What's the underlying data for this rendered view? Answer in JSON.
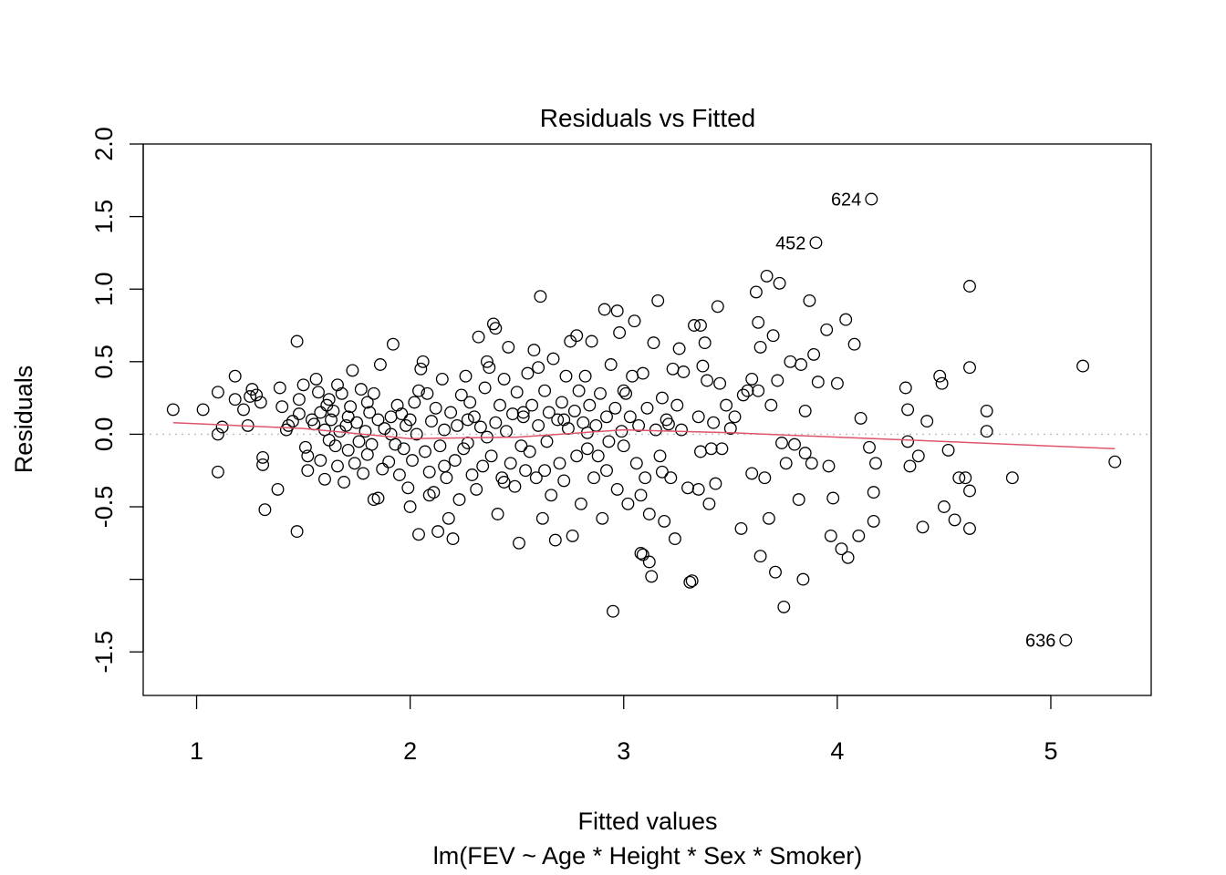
{
  "chart_data": {
    "type": "scatter",
    "title": "Residuals vs Fitted",
    "xlabel": "Fitted values",
    "subtitle": "lm(FEV ~ Age * Height * Sex * Smoker)",
    "ylabel": "Residuals",
    "xlim": [
      0.75,
      5.47
    ],
    "ylim": [
      -1.8,
      2.0
    ],
    "x_ticks": [
      1,
      2,
      3,
      4,
      5
    ],
    "x_tick_labels": [
      "1",
      "2",
      "3",
      "4",
      "5"
    ],
    "y_ticks": [
      -1.5,
      -1.0,
      -0.5,
      0.0,
      0.5,
      1.0,
      1.5,
      2.0
    ],
    "y_tick_labels": [
      "-1.5",
      "",
      "-0.5",
      "0.0",
      "0.5",
      "1.0",
      "1.5",
      "2.0"
    ],
    "grid": false,
    "reference_line": {
      "y": 0,
      "style": "dotted",
      "color": "#bebebe"
    },
    "colors": {
      "points": "#000000",
      "smoother": "#df536b"
    },
    "smoother": [
      [
        0.89,
        0.08
      ],
      [
        1.5,
        0.04
      ],
      [
        2.0,
        -0.03
      ],
      [
        2.5,
        -0.02
      ],
      [
        3.0,
        0.03
      ],
      [
        3.5,
        0.01
      ],
      [
        4.0,
        -0.02
      ],
      [
        4.5,
        -0.05
      ],
      [
        5.3,
        -0.1
      ]
    ],
    "labeled_points": [
      {
        "label": "624",
        "x": 4.16,
        "y": 1.62
      },
      {
        "label": "452",
        "x": 3.9,
        "y": 1.32
      },
      {
        "label": "636",
        "x": 5.07,
        "y": -1.42
      }
    ],
    "points": [
      [
        0.89,
        0.17
      ],
      [
        1.03,
        0.17
      ],
      [
        1.1,
        0.29
      ],
      [
        1.1,
        0.0
      ],
      [
        1.12,
        0.05
      ],
      [
        1.1,
        -0.26
      ],
      [
        1.18,
        0.4
      ],
      [
        1.18,
        0.24
      ],
      [
        1.22,
        0.17
      ],
      [
        1.24,
        0.06
      ],
      [
        1.26,
        0.31
      ],
      [
        1.28,
        0.27
      ],
      [
        1.3,
        0.22
      ],
      [
        1.31,
        -0.16
      ],
      [
        1.31,
        -0.21
      ],
      [
        1.32,
        -0.52
      ],
      [
        1.38,
        -0.38
      ],
      [
        1.39,
        0.32
      ],
      [
        1.4,
        0.19
      ],
      [
        1.43,
        0.06
      ],
      [
        1.45,
        0.09
      ],
      [
        1.47,
        0.64
      ],
      [
        1.47,
        -0.67
      ],
      [
        1.48,
        0.14
      ],
      [
        1.48,
        0.24
      ],
      [
        1.5,
        0.34
      ],
      [
        1.51,
        -0.09
      ],
      [
        1.52,
        -0.15
      ],
      [
        1.52,
        -0.25
      ],
      [
        1.54,
        0.1
      ],
      [
        1.55,
        0.07
      ],
      [
        1.56,
        0.38
      ],
      [
        1.57,
        0.29
      ],
      [
        1.58,
        -0.18
      ],
      [
        1.6,
        -0.31
      ],
      [
        1.6,
        0.03
      ],
      [
        1.61,
        0.2
      ],
      [
        1.62,
        0.24
      ],
      [
        1.62,
        -0.04
      ],
      [
        1.63,
        0.1
      ],
      [
        1.64,
        0.16
      ],
      [
        1.65,
        -0.08
      ],
      [
        1.66,
        0.34
      ],
      [
        1.66,
        -0.22
      ],
      [
        1.67,
        0.02
      ],
      [
        1.68,
        0.28
      ],
      [
        1.69,
        -0.33
      ],
      [
        1.7,
        0.06
      ],
      [
        1.71,
        -0.11
      ],
      [
        1.72,
        0.19
      ],
      [
        1.73,
        0.44
      ],
      [
        1.74,
        -0.2
      ],
      [
        1.75,
        0.08
      ],
      [
        1.76,
        -0.05
      ],
      [
        1.77,
        0.31
      ],
      [
        1.78,
        -0.27
      ],
      [
        1.79,
        0.02
      ],
      [
        1.8,
        -0.14
      ],
      [
        1.81,
        0.15
      ],
      [
        1.82,
        -0.07
      ],
      [
        1.83,
        0.28
      ],
      [
        1.83,
        -0.45
      ],
      [
        1.85,
        -0.44
      ],
      [
        1.85,
        0.1
      ],
      [
        1.86,
        0.48
      ],
      [
        1.87,
        -0.24
      ],
      [
        1.88,
        0.04
      ],
      [
        1.9,
        -0.19
      ],
      [
        1.91,
        0.12
      ],
      [
        1.92,
        0.62
      ],
      [
        1.93,
        -0.07
      ],
      [
        1.94,
        0.2
      ],
      [
        1.95,
        -0.28
      ],
      [
        1.96,
        0.14
      ],
      [
        1.97,
        -0.1
      ],
      [
        1.98,
        0.06
      ],
      [
        1.99,
        -0.37
      ],
      [
        2.0,
        0.1
      ],
      [
        2.0,
        -0.5
      ],
      [
        2.01,
        -0.18
      ],
      [
        2.02,
        0.22
      ],
      [
        2.03,
        0.0
      ],
      [
        2.04,
        -0.69
      ],
      [
        2.05,
        0.45
      ],
      [
        2.06,
        0.5
      ],
      [
        2.07,
        -0.12
      ],
      [
        2.08,
        0.28
      ],
      [
        2.09,
        -0.26
      ],
      [
        2.1,
        0.09
      ],
      [
        2.11,
        -0.4
      ],
      [
        2.12,
        0.18
      ],
      [
        2.13,
        -0.67
      ],
      [
        2.14,
        -0.08
      ],
      [
        2.15,
        0.38
      ],
      [
        2.16,
        0.03
      ],
      [
        2.17,
        -0.3
      ],
      [
        2.18,
        -0.58
      ],
      [
        2.19,
        0.15
      ],
      [
        2.2,
        -0.72
      ],
      [
        2.21,
        -0.18
      ],
      [
        2.22,
        0.06
      ],
      [
        2.23,
        -0.45
      ],
      [
        2.24,
        0.27
      ],
      [
        2.25,
        -0.1
      ],
      [
        2.26,
        0.4
      ],
      [
        2.27,
        -0.06
      ],
      [
        2.28,
        0.22
      ],
      [
        2.29,
        -0.28
      ],
      [
        2.3,
        0.12
      ],
      [
        2.31,
        -0.38
      ],
      [
        2.32,
        0.67
      ],
      [
        2.33,
        0.05
      ],
      [
        2.34,
        -0.22
      ],
      [
        2.35,
        0.32
      ],
      [
        2.36,
        -0.02
      ],
      [
        2.37,
        0.46
      ],
      [
        2.38,
        -0.15
      ],
      [
        2.39,
        0.76
      ],
      [
        2.4,
        0.08
      ],
      [
        2.41,
        -0.55
      ],
      [
        2.42,
        0.2
      ],
      [
        2.43,
        -0.3
      ],
      [
        2.44,
        0.38
      ],
      [
        2.45,
        0.02
      ],
      [
        2.46,
        0.6
      ],
      [
        2.47,
        -0.2
      ],
      [
        2.48,
        0.14
      ],
      [
        2.49,
        -0.36
      ],
      [
        2.5,
        0.29
      ],
      [
        2.51,
        -0.75
      ],
      [
        2.52,
        -0.08
      ],
      [
        2.53,
        0.12
      ],
      [
        2.54,
        -0.25
      ],
      [
        2.55,
        0.42
      ],
      [
        2.56,
        -0.12
      ],
      [
        2.57,
        0.2
      ],
      [
        2.58,
        0.58
      ],
      [
        2.59,
        -0.3
      ],
      [
        2.6,
        0.06
      ],
      [
        2.61,
        0.95
      ],
      [
        2.62,
        -0.58
      ],
      [
        2.63,
        0.3
      ],
      [
        2.64,
        -0.05
      ],
      [
        2.65,
        0.15
      ],
      [
        2.66,
        -0.42
      ],
      [
        2.67,
        0.52
      ],
      [
        2.68,
        -0.73
      ],
      [
        2.69,
        0.1
      ],
      [
        2.7,
        -0.2
      ],
      [
        2.71,
        0.22
      ],
      [
        2.72,
        -0.32
      ],
      [
        2.73,
        0.4
      ],
      [
        2.74,
        0.04
      ],
      [
        2.75,
        0.64
      ],
      [
        2.76,
        -0.7
      ],
      [
        2.77,
        0.16
      ],
      [
        2.78,
        -0.15
      ],
      [
        2.79,
        0.3
      ],
      [
        2.8,
        -0.48
      ],
      [
        2.81,
        0.08
      ],
      [
        2.82,
        0.4
      ],
      [
        2.83,
        -0.1
      ],
      [
        2.84,
        0.2
      ],
      [
        2.85,
        0.64
      ],
      [
        2.86,
        -0.3
      ],
      [
        2.87,
        0.06
      ],
      [
        2.88,
        -0.15
      ],
      [
        2.89,
        0.28
      ],
      [
        2.9,
        -0.58
      ],
      [
        2.91,
        0.86
      ],
      [
        2.92,
        0.12
      ],
      [
        2.93,
        -0.05
      ],
      [
        2.94,
        0.48
      ],
      [
        2.95,
        -1.22
      ],
      [
        2.96,
        0.18
      ],
      [
        2.97,
        -0.38
      ],
      [
        2.98,
        0.7
      ],
      [
        2.99,
        0.02
      ],
      [
        3.0,
        -0.08
      ],
      [
        3.01,
        0.28
      ],
      [
        3.02,
        -0.48
      ],
      [
        3.03,
        0.12
      ],
      [
        3.04,
        0.4
      ],
      [
        3.05,
        0.78
      ],
      [
        3.06,
        -0.2
      ],
      [
        3.07,
        0.06
      ],
      [
        3.08,
        -0.82
      ],
      [
        3.09,
        0.42
      ],
      [
        3.1,
        -0.3
      ],
      [
        3.11,
        0.18
      ],
      [
        3.12,
        -0.55
      ],
      [
        3.13,
        -0.98
      ],
      [
        3.14,
        0.63
      ],
      [
        3.15,
        0.03
      ],
      [
        3.16,
        0.92
      ],
      [
        3.17,
        -0.15
      ],
      [
        3.18,
        0.25
      ],
      [
        3.19,
        -0.6
      ],
      [
        3.2,
        0.1
      ],
      [
        3.22,
        -0.3
      ],
      [
        3.23,
        0.45
      ],
      [
        3.24,
        -0.72
      ],
      [
        3.25,
        0.2
      ],
      [
        3.26,
        0.59
      ],
      [
        3.27,
        0.03
      ],
      [
        3.28,
        0.43
      ],
      [
        3.3,
        -0.37
      ],
      [
        3.31,
        -1.02
      ],
      [
        3.32,
        -1.01
      ],
      [
        3.33,
        0.75
      ],
      [
        3.35,
        0.12
      ],
      [
        3.36,
        -0.12
      ],
      [
        3.37,
        0.47
      ],
      [
        3.38,
        0.63
      ],
      [
        3.39,
        0.37
      ],
      [
        3.4,
        -0.48
      ],
      [
        3.41,
        -0.1
      ],
      [
        3.42,
        0.08
      ],
      [
        3.43,
        -0.34
      ],
      [
        3.44,
        0.88
      ],
      [
        3.45,
        0.35
      ],
      [
        3.46,
        -0.1
      ],
      [
        3.48,
        0.2
      ],
      [
        3.5,
        0.04
      ],
      [
        3.52,
        0.12
      ],
      [
        3.55,
        -0.65
      ],
      [
        3.56,
        0.27
      ],
      [
        3.58,
        0.3
      ],
      [
        3.6,
        0.38
      ],
      [
        3.6,
        -0.27
      ],
      [
        3.62,
        0.98
      ],
      [
        3.63,
        0.3
      ],
      [
        3.63,
        0.77
      ],
      [
        3.64,
        -0.84
      ],
      [
        3.64,
        0.6
      ],
      [
        3.66,
        -0.3
      ],
      [
        3.67,
        1.09
      ],
      [
        3.68,
        -0.58
      ],
      [
        3.69,
        0.2
      ],
      [
        3.7,
        0.68
      ],
      [
        3.71,
        -0.95
      ],
      [
        3.72,
        0.37
      ],
      [
        3.73,
        1.04
      ],
      [
        3.74,
        -0.06
      ],
      [
        3.75,
        -1.19
      ],
      [
        3.76,
        -0.2
      ],
      [
        3.78,
        0.5
      ],
      [
        3.8,
        -0.07
      ],
      [
        3.82,
        -0.45
      ],
      [
        3.83,
        0.48
      ],
      [
        3.84,
        -1.0
      ],
      [
        3.85,
        -0.13
      ],
      [
        3.87,
        0.92
      ],
      [
        3.88,
        -0.2
      ],
      [
        3.89,
        0.55
      ],
      [
        3.91,
        0.36
      ],
      [
        3.95,
        0.72
      ],
      [
        3.96,
        -0.22
      ],
      [
        3.97,
        -0.7
      ],
      [
        3.98,
        -0.44
      ],
      [
        4.0,
        0.35
      ],
      [
        4.02,
        -0.79
      ],
      [
        4.04,
        0.79
      ],
      [
        4.05,
        -0.85
      ],
      [
        4.08,
        0.62
      ],
      [
        4.1,
        -0.7
      ],
      [
        4.11,
        0.11
      ],
      [
        4.15,
        -0.09
      ],
      [
        4.17,
        -0.4
      ],
      [
        4.17,
        -0.6
      ],
      [
        4.18,
        -0.2
      ],
      [
        4.32,
        0.32
      ],
      [
        4.33,
        0.17
      ],
      [
        4.33,
        -0.05
      ],
      [
        4.34,
        -0.22
      ],
      [
        4.38,
        -0.15
      ],
      [
        4.4,
        -0.64
      ],
      [
        4.42,
        0.09
      ],
      [
        4.48,
        0.4
      ],
      [
        4.49,
        0.35
      ],
      [
        4.5,
        -0.5
      ],
      [
        4.52,
        -0.11
      ],
      [
        4.55,
        -0.59
      ],
      [
        4.57,
        -0.3
      ],
      [
        4.6,
        -0.3
      ],
      [
        4.62,
        1.02
      ],
      [
        4.62,
        0.46
      ],
      [
        4.62,
        -0.65
      ],
      [
        4.62,
        -0.39
      ],
      [
        4.7,
        0.16
      ],
      [
        4.7,
        0.02
      ],
      [
        4.82,
        -0.3
      ],
      [
        5.15,
        0.47
      ],
      [
        5.3,
        -0.19
      ],
      [
        1.25,
        0.26
      ],
      [
        1.42,
        0.03
      ],
      [
        1.58,
        0.15
      ],
      [
        1.71,
        0.12
      ],
      [
        1.8,
        0.22
      ],
      [
        1.91,
        0.0
      ],
      [
        2.04,
        0.3
      ],
      [
        2.09,
        -0.42
      ],
      [
        2.16,
        -0.22
      ],
      [
        2.27,
        0.1
      ],
      [
        2.36,
        0.5
      ],
      [
        2.44,
        -0.33
      ],
      [
        2.53,
        0.15
      ],
      [
        2.63,
        -0.25
      ],
      [
        2.72,
        0.1
      ],
      [
        2.83,
        0.01
      ],
      [
        2.92,
        -0.25
      ],
      [
        3.0,
        0.3
      ],
      [
        3.08,
        -0.42
      ],
      [
        3.18,
        -0.26
      ],
      [
        2.4,
        0.73
      ],
      [
        2.78,
        0.68
      ],
      [
        2.97,
        0.85
      ],
      [
        3.36,
        0.75
      ],
      [
        2.6,
        0.46
      ],
      [
        3.12,
        -0.88
      ],
      [
        3.09,
        -0.83
      ],
      [
        3.21,
        0.07
      ],
      [
        3.35,
        -0.38
      ],
      [
        3.85,
        0.16
      ]
    ]
  }
}
